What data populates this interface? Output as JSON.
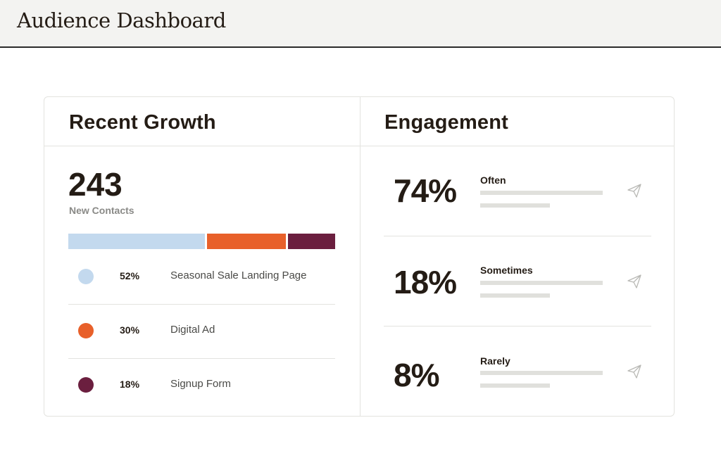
{
  "header": {
    "title": "Audience Dashboard"
  },
  "growth": {
    "title": "Recent Growth",
    "total": "243",
    "total_label": "New Contacts",
    "sources": [
      {
        "pct": "52%",
        "share": 52,
        "name": "Seasonal Sale Landing Page",
        "color": "#c3d9ee"
      },
      {
        "pct": "30%",
        "share": 30,
        "name": "Digital Ad",
        "color": "#e8602a"
      },
      {
        "pct": "18%",
        "share": 18,
        "name": "Signup Form",
        "color": "#6b1f3f"
      }
    ]
  },
  "engagement": {
    "title": "Engagement",
    "rows": [
      {
        "pct": "74%",
        "label": "Often",
        "icon": "paper-plane-icon"
      },
      {
        "pct": "18%",
        "label": "Sometimes",
        "icon": "paper-plane-icon"
      },
      {
        "pct": "8%",
        "label": "Rarely",
        "icon": "paper-plane-icon"
      }
    ]
  }
}
